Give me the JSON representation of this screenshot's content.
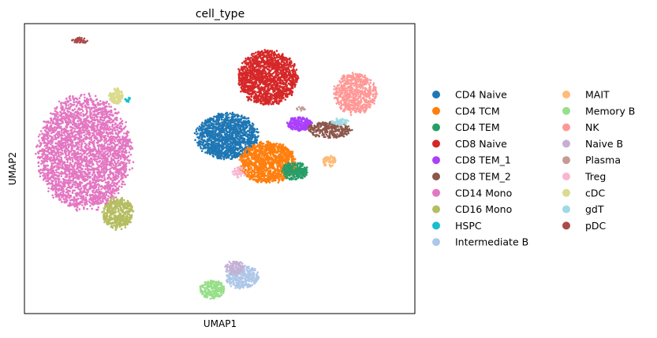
{
  "chart_data": {
    "type": "scatter",
    "title": "cell_type",
    "xlabel": "UMAP1",
    "ylabel": "UMAP2",
    "xlim": [
      -8,
      18
    ],
    "ylim": [
      -12,
      12
    ],
    "grid": false,
    "ticks_shown": false,
    "legend": {
      "placement": "right, outside plot",
      "columns": 2
    },
    "series": [
      {
        "name": "CD4 Naive",
        "color": "#1f77b4",
        "clusters": [
          {
            "cx": 5.5,
            "cy": 2.7,
            "rx": 2.2,
            "ry": 2.0,
            "n": 1400
          }
        ]
      },
      {
        "name": "CD4 TCM",
        "color": "#ff7f0e",
        "clusters": [
          {
            "cx": 8.2,
            "cy": 0.5,
            "rx": 2.0,
            "ry": 1.8,
            "n": 1200
          }
        ]
      },
      {
        "name": "CD4 TEM",
        "color": "#279e68",
        "clusters": [
          {
            "cx": 10.0,
            "cy": -0.2,
            "rx": 0.9,
            "ry": 0.8,
            "n": 260
          }
        ]
      },
      {
        "name": "CD8 Naive",
        "color": "#d62728",
        "clusters": [
          {
            "cx": 8.2,
            "cy": 7.5,
            "rx": 2.1,
            "ry": 2.4,
            "n": 1500
          }
        ]
      },
      {
        "name": "CD8 TEM_1",
        "color": "#aa40fc",
        "clusters": [
          {
            "cx": 10.3,
            "cy": 3.7,
            "rx": 0.9,
            "ry": 0.6,
            "n": 220
          }
        ]
      },
      {
        "name": "CD8 TEM_2",
        "color": "#8c564b",
        "clusters": [
          {
            "cx": 12.3,
            "cy": 3.2,
            "rx": 1.6,
            "ry": 0.7,
            "n": 260
          }
        ]
      },
      {
        "name": "CD14 Mono",
        "color": "#e377c2",
        "clusters": [
          {
            "cx": -4.0,
            "cy": 1.3,
            "rx": 3.3,
            "ry": 5.0,
            "n": 3200
          }
        ]
      },
      {
        "name": "CD16 Mono",
        "color": "#b5bd61",
        "clusters": [
          {
            "cx": -1.8,
            "cy": -3.7,
            "rx": 1.1,
            "ry": 1.4,
            "n": 420
          }
        ]
      },
      {
        "name": "HSPC",
        "color": "#17becf",
        "clusters": [
          {
            "cx": -1.1,
            "cy": 5.7,
            "rx": 0.2,
            "ry": 0.2,
            "n": 15
          }
        ]
      },
      {
        "name": "Intermediate B",
        "color": "#aec7e8",
        "clusters": [
          {
            "cx": 6.5,
            "cy": -9.0,
            "rx": 1.2,
            "ry": 1.0,
            "n": 320
          }
        ]
      },
      {
        "name": "MAIT",
        "color": "#ffbb78",
        "clusters": [
          {
            "cx": 12.3,
            "cy": 0.6,
            "rx": 0.5,
            "ry": 0.5,
            "n": 70
          }
        ]
      },
      {
        "name": "Memory B",
        "color": "#98df8a",
        "clusters": [
          {
            "cx": 4.5,
            "cy": -10.0,
            "rx": 0.9,
            "ry": 0.8,
            "n": 250
          }
        ]
      },
      {
        "name": "NK",
        "color": "#ff9896",
        "clusters": [
          {
            "cx": 14.0,
            "cy": 6.2,
            "rx": 1.5,
            "ry": 1.8,
            "n": 650
          }
        ]
      },
      {
        "name": "Naive B",
        "color": "#c5b0d5",
        "clusters": [
          {
            "cx": 6.0,
            "cy": -8.2,
            "rx": 0.7,
            "ry": 0.6,
            "n": 120
          }
        ]
      },
      {
        "name": "Plasma",
        "color": "#c49c94",
        "clusters": [
          {
            "cx": 10.4,
            "cy": 5.0,
            "rx": 0.3,
            "ry": 0.3,
            "n": 15
          }
        ]
      },
      {
        "name": "Treg",
        "color": "#f7b6d2",
        "clusters": [
          {
            "cx": 6.3,
            "cy": -0.3,
            "rx": 0.5,
            "ry": 0.5,
            "n": 40
          }
        ]
      },
      {
        "name": "cDC",
        "color": "#dbdb8d",
        "clusters": [
          {
            "cx": -1.9,
            "cy": 6.0,
            "rx": 0.5,
            "ry": 0.7,
            "n": 140
          }
        ]
      },
      {
        "name": "gdT",
        "color": "#9edae5",
        "clusters": [
          {
            "cx": 13.0,
            "cy": 3.9,
            "rx": 0.6,
            "ry": 0.3,
            "n": 45
          }
        ]
      },
      {
        "name": "pDC",
        "color": "#ad494a",
        "clusters": [
          {
            "cx": -4.3,
            "cy": 10.6,
            "rx": 0.55,
            "ry": 0.25,
            "n": 45
          }
        ]
      }
    ]
  }
}
